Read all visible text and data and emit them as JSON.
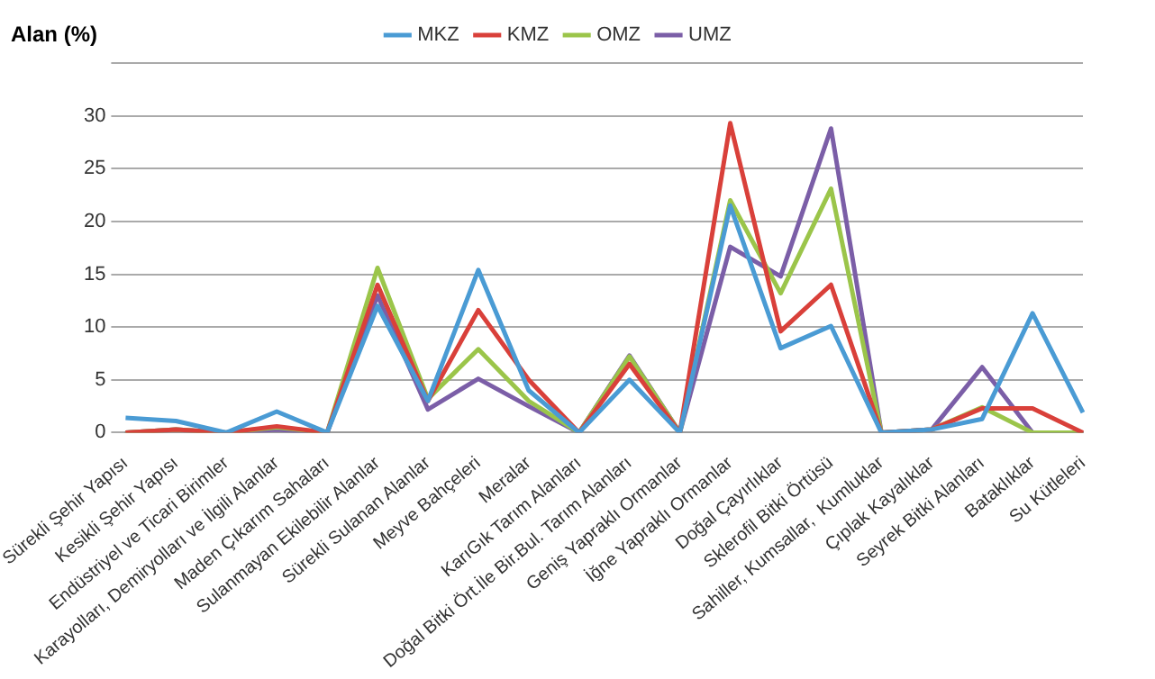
{
  "chart_data": {
    "type": "line",
    "ylabel": "Alan (%)",
    "categories": [
      "Sürekli Şehir Yapısı",
      "Kesikli Şehir Yapısı",
      "Endüstriyel ve Ticari Birimler",
      "Karayolları, Demiryolları ve İlgili Alanlar",
      "Maden Çıkarım Sahaları",
      "Sulanmayan Ekilebilir Alanlar",
      "Sürekli Sulanan Alanlar",
      "Meyve Bahçeleri",
      "Meralar",
      "KarıGık Tarım Alanları",
      "Doğal Bitki Ört.İle Bir.Bul. Tarım Alanları",
      "Geniş Yapraklı Ormanlar",
      "İğne Yapraklı Ormanlar",
      "Doğal Çayırlıklar",
      "Sklerofil Bitki Örtüsü",
      "Sahiller, Kumsallar,  Kumluklar",
      "Çıplak Kayalıklar",
      "Seyrek Bitki Alanları",
      "Bataklıklar",
      "Su Kütleleri"
    ],
    "series": [
      {
        "name": "MKZ",
        "color": "#4a9bd4",
        "values": [
          1.4,
          1.1,
          0,
          2,
          0,
          12,
          3,
          15.4,
          4,
          0,
          5,
          0,
          21.5,
          8,
          10.1,
          0,
          0.3,
          1.3,
          11.3,
          1.9
        ]
      },
      {
        "name": "KMZ",
        "color": "#d9403a",
        "values": [
          0,
          0.3,
          0,
          0.6,
          0,
          14,
          3,
          11.6,
          5,
          0,
          6.5,
          0,
          29.3,
          9.6,
          14,
          0,
          0.3,
          2.3,
          2.3,
          0
        ]
      },
      {
        "name": "OMZ",
        "color": "#9bc54a",
        "values": [
          0,
          0.3,
          0,
          0.5,
          0,
          15.6,
          3.2,
          7.9,
          3,
          0,
          7.2,
          0,
          22,
          13.2,
          23.1,
          0,
          0.3,
          2.4,
          0,
          0
        ]
      },
      {
        "name": "UMZ",
        "color": "#7b5ea7",
        "values": [
          0,
          0.3,
          0,
          0.3,
          0,
          13,
          2.2,
          5.1,
          2.5,
          0,
          7.3,
          0,
          17.6,
          14.8,
          28.8,
          0,
          0.3,
          6.2,
          0,
          0
        ]
      }
    ],
    "ylim": [
      0,
      35
    ],
    "yticks": [
      0,
      5,
      10,
      15,
      20,
      25,
      30,
      {
        "value": 35,
        "label": null
      }
    ],
    "grid": "y",
    "legend": "top",
    "marker": "none",
    "line_style": "solid"
  }
}
